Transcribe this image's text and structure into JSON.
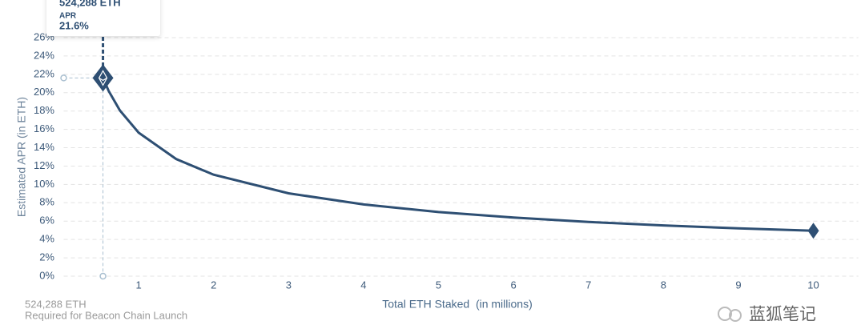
{
  "chart_data": {
    "type": "line",
    "y_label": "Estimated APR (in ETH)",
    "x_label": "Total ETH Staked  (in millions)",
    "x": [
      0.524288,
      0.6,
      0.75,
      1,
      1.5,
      2,
      3,
      4,
      5,
      6,
      7,
      8,
      9,
      10
    ],
    "series": [
      {
        "color": "#2e4f73",
        "values": [
          21.6,
          20.19,
          18.06,
          15.64,
          12.77,
          11.06,
          9.03,
          7.82,
          6.99,
          6.39,
          5.91,
          5.53,
          5.21,
          4.95
        ]
      }
    ],
    "xlim": [
      0,
      10.6
    ],
    "ylim": [
      0,
      26
    ],
    "xticks": [
      1,
      2,
      3,
      4,
      5,
      6,
      7,
      8,
      9,
      10
    ],
    "yticks": [
      {
        "value": 0,
        "label": "0%"
      },
      {
        "value": 2,
        "label": "2%"
      },
      {
        "value": 4,
        "label": "4%"
      },
      {
        "value": 6,
        "label": "6%"
      },
      {
        "value": 8,
        "label": "8%"
      },
      {
        "value": 10,
        "label": "10%"
      },
      {
        "value": 12,
        "label": "12%"
      },
      {
        "value": 14,
        "label": "14%"
      },
      {
        "value": 16,
        "label": "16%"
      },
      {
        "value": 18,
        "label": "18%"
      },
      {
        "value": 20,
        "label": "20%"
      },
      {
        "value": 22,
        "label": "22%"
      },
      {
        "value": 24,
        "label": "24%"
      },
      {
        "value": 26,
        "label": "26%"
      }
    ],
    "grid": true,
    "tooltip": {
      "amount": "524,288 ETH",
      "label": "APR",
      "value": "21.6%"
    },
    "annotation": {
      "amount": "524,288 ETH",
      "note": "Required for Beacon Chain Launch"
    },
    "watermark": "蓝狐笔记"
  }
}
